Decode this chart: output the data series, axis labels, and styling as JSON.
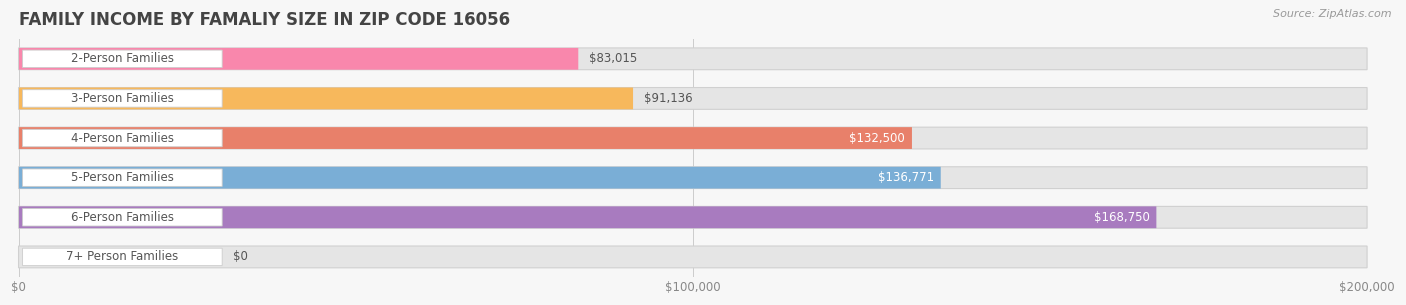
{
  "title": "FAMILY INCOME BY FAMALIY SIZE IN ZIP CODE 16056",
  "source": "Source: ZipAtlas.com",
  "categories": [
    "2-Person Families",
    "3-Person Families",
    "4-Person Families",
    "5-Person Families",
    "6-Person Families",
    "7+ Person Families"
  ],
  "values": [
    83015,
    91136,
    132500,
    136771,
    168750,
    0
  ],
  "bar_colors": [
    "#f987ac",
    "#f7b85c",
    "#e8806a",
    "#7aaed6",
    "#a87bbf",
    "#6dcbce"
  ],
  "value_labels": [
    "$83,015",
    "$91,136",
    "$132,500",
    "$136,771",
    "$168,750",
    "$0"
  ],
  "value_inside": [
    false,
    false,
    true,
    true,
    true,
    false
  ],
  "xlim_max": 200000,
  "xtick_labels": [
    "$0",
    "$100,000",
    "$200,000"
  ],
  "background_color": "#f7f7f7",
  "bar_bg_color": "#e5e5e5",
  "title_fontsize": 12,
  "label_fontsize": 8.5,
  "value_fontsize": 8.5,
  "bar_height": 0.55,
  "fig_width": 14.06,
  "fig_height": 3.05
}
